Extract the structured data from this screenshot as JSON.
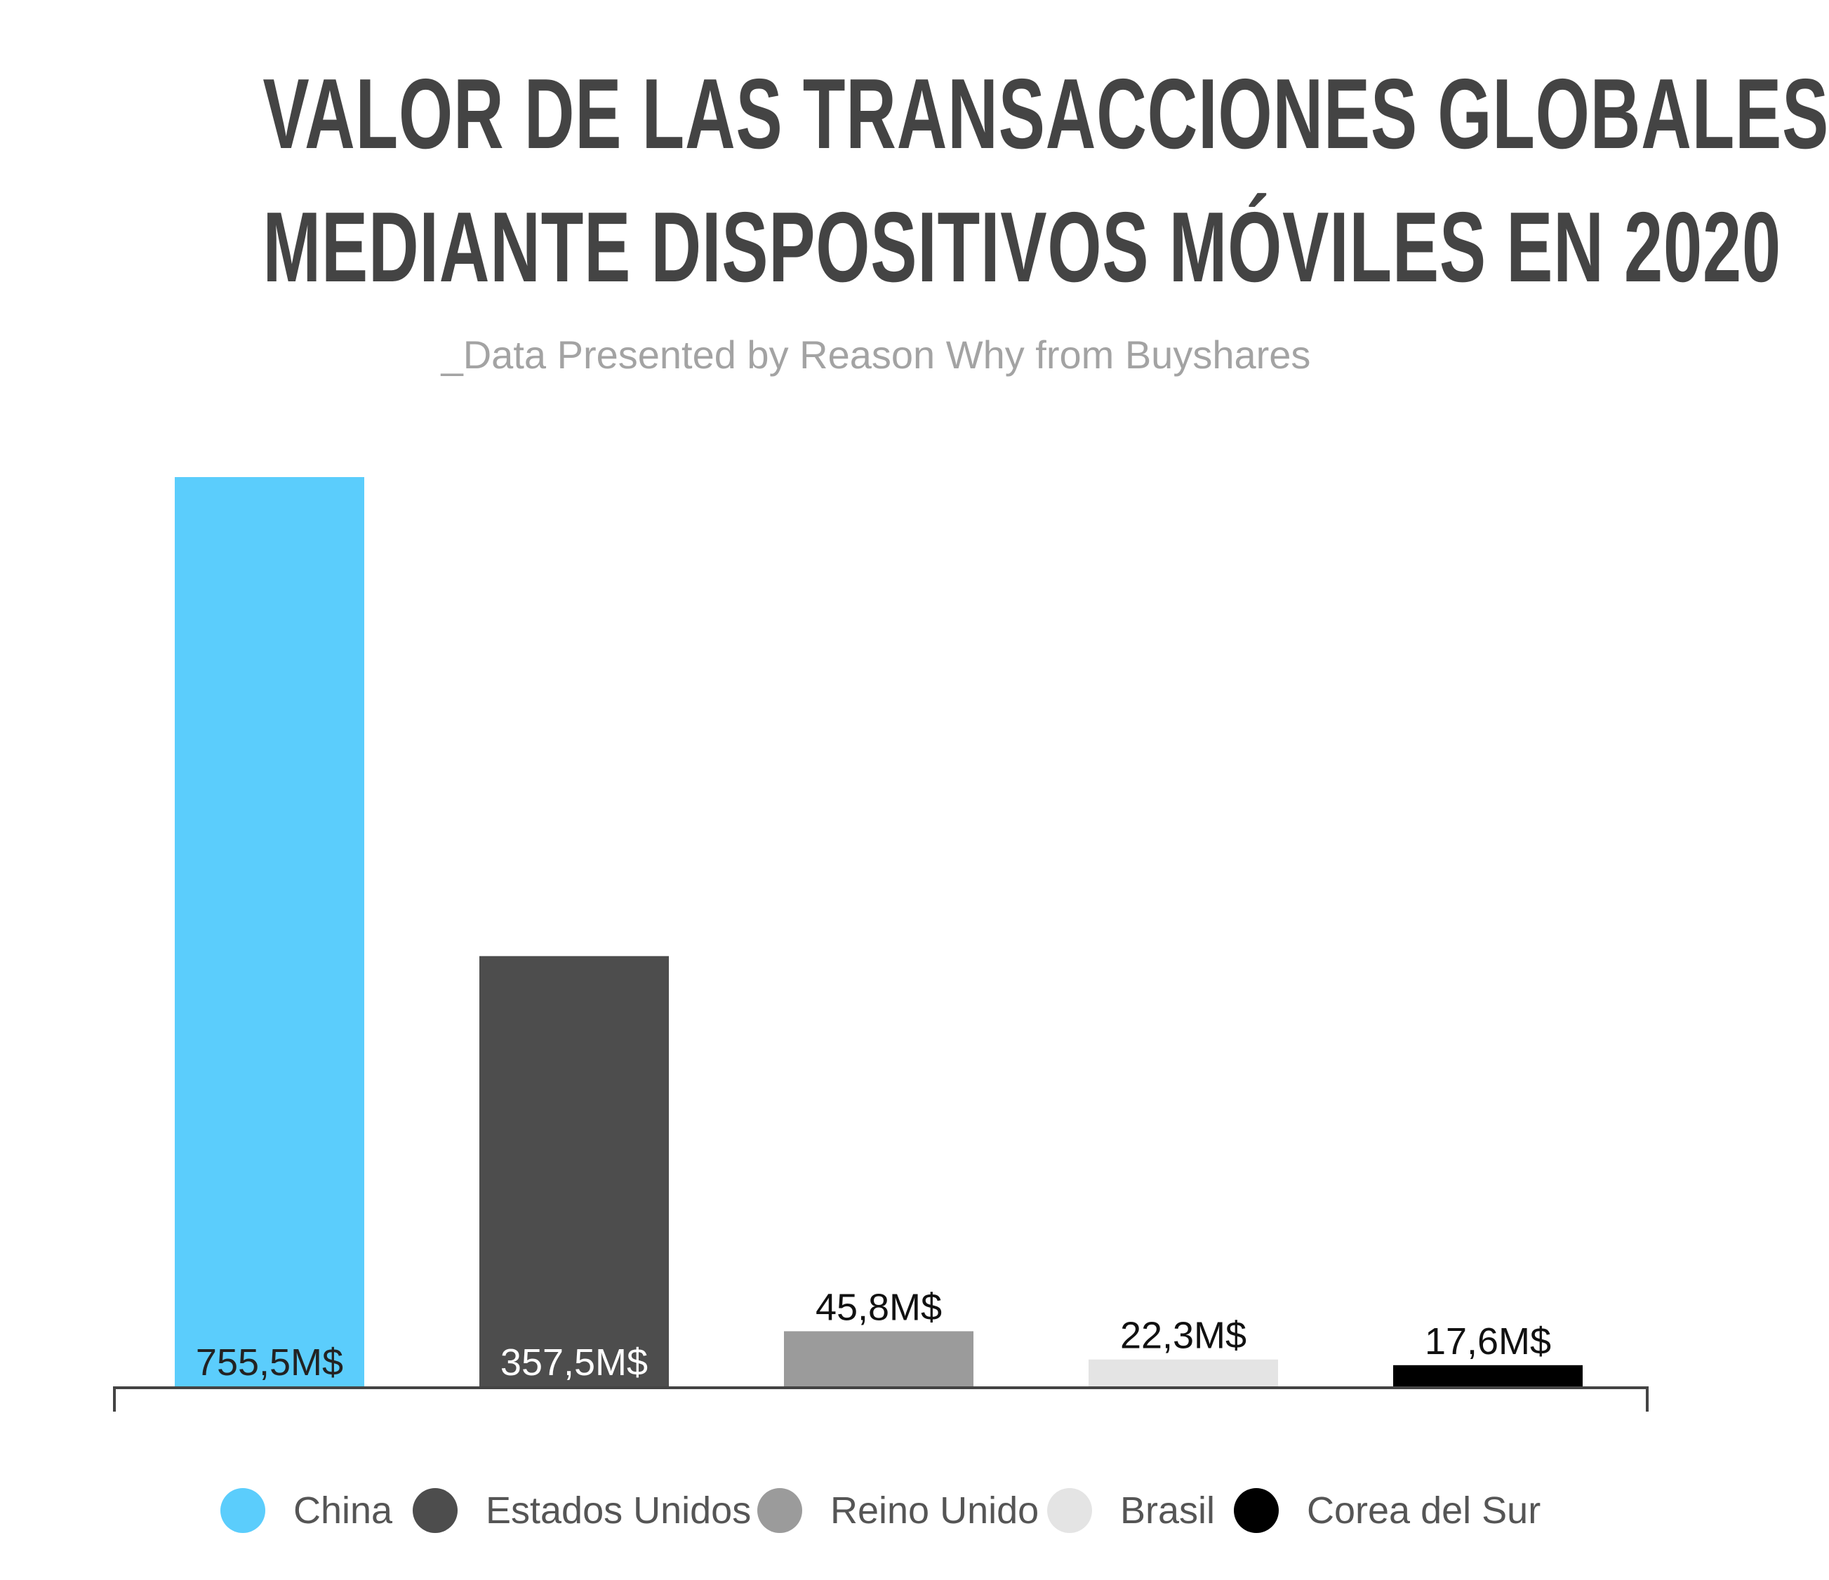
{
  "header": {
    "title_line1": "VALOR DE LAS TRANSACCIONES GLOBALES",
    "title_line2": "MEDIANTE DISPOSITIVOS MÓVILES EN 2020",
    "subtitle": "_Data Presented by Reason Why from Buyshares"
  },
  "chart_data": {
    "type": "bar",
    "title": "VALOR DE LAS TRANSACCIONES GLOBALES MEDIANTE DISPOSITIVOS MÓVILES EN 2020",
    "subtitle": "_Data Presented by Reason Why from Buyshares",
    "categories": [
      "China",
      "Estados Unidos",
      "Reino Unido",
      "Brasil",
      "Corea del Sur"
    ],
    "values": [
      755.5,
      357.5,
      45.8,
      22.3,
      17.6
    ],
    "value_labels": [
      "755,5M$",
      "357,5M$",
      "45,8M$",
      "22,3M$",
      "17,6M$"
    ],
    "colors": [
      "#5bcdfc",
      "#4d4d4d",
      "#9b9b9b",
      "#e4e4e4",
      "#000000"
    ],
    "label_inside_bar": [
      true,
      true,
      false,
      false,
      false
    ],
    "label_colors": [
      "#222222",
      "#ffffff",
      "#111111",
      "#111111",
      "#111111"
    ],
    "ylim": [
      0,
      755.5
    ],
    "xlabel": "",
    "ylabel": "",
    "grid": false,
    "legend_position": "bottom"
  },
  "legend": {
    "items": [
      {
        "label": "China",
        "color": "#5bcdfc"
      },
      {
        "label": "Estados Unidos",
        "color": "#4d4d4d"
      },
      {
        "label": "Reino Unido",
        "color": "#9b9b9b"
      },
      {
        "label": "Brasil",
        "color": "#e4e4e4"
      },
      {
        "label": "Corea del Sur",
        "color": "#000000"
      }
    ]
  }
}
